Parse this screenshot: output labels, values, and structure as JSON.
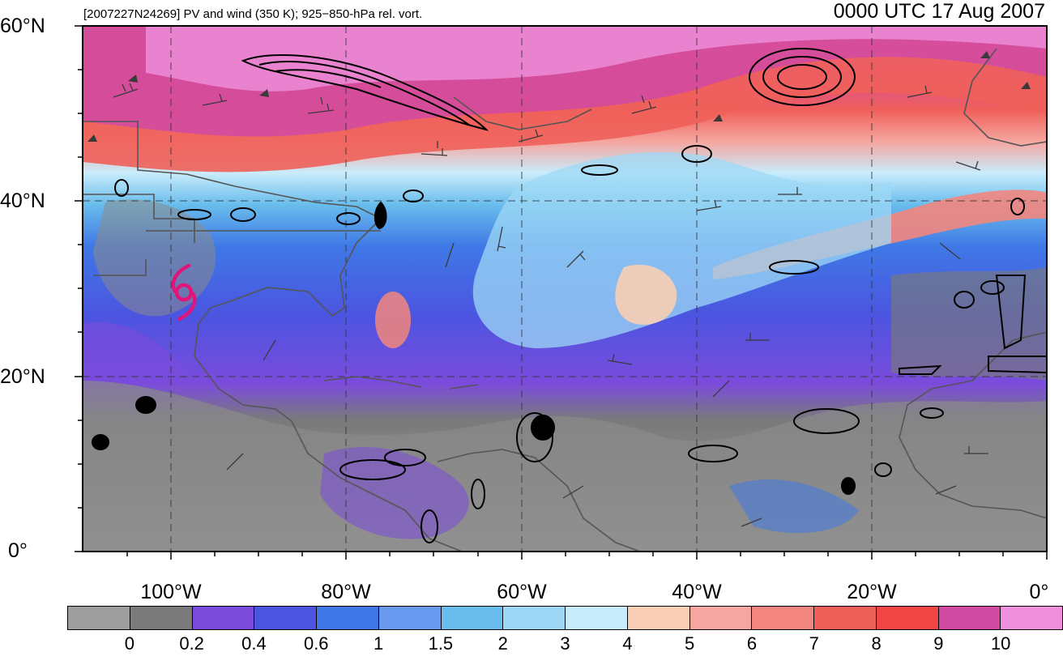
{
  "header": {
    "left_title": "[2007227N24269] PV and wind (350 K); 925−850-hPa rel. vort.",
    "right_title": "0000 UTC 17 Aug 2007"
  },
  "map": {
    "lat_labels": [
      "60°N",
      "40°N",
      "20°N",
      "0°"
    ],
    "lon_labels": [
      "100°W",
      "80°W",
      "60°W",
      "40°W",
      "20°W",
      "0°"
    ],
    "lat_extent": [
      0,
      60
    ],
    "lon_extent": [
      -110,
      0
    ],
    "storm_symbol": "tropical-cyclone-icon",
    "storm_color": "#e0157a",
    "gridline_style": "dashed",
    "contour_color": "#000000"
  },
  "colorbar": {
    "colors": [
      "#9e9e9e",
      "#7a7a7a",
      "#7b4bdc",
      "#4b55e0",
      "#3f78e6",
      "#6a9af0",
      "#69bdec",
      "#9ed8f6",
      "#c8ecfb",
      "#f8cfb4",
      "#f6a6a0",
      "#f2867e",
      "#f0605a",
      "#f04646",
      "#d04aa4",
      "#ee90dc"
    ],
    "labels": [
      "0",
      "0.2",
      "0.4",
      "0.6",
      "1",
      "1.5",
      "2",
      "3",
      "4",
      "5",
      "6",
      "7",
      "8",
      "9",
      "10"
    ]
  }
}
